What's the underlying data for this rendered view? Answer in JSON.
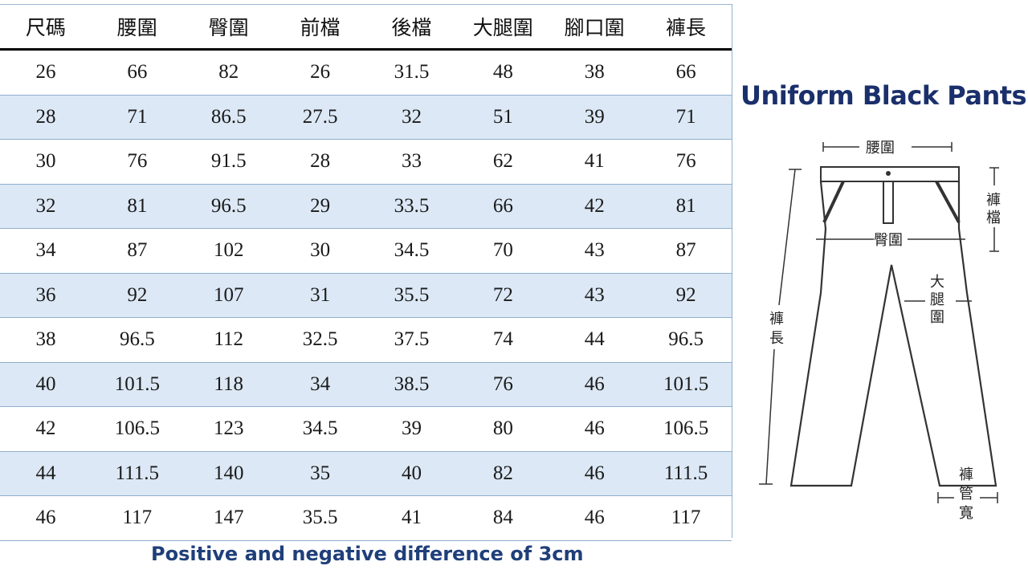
{
  "size_table": {
    "headers": [
      "尺碼",
      "腰圍",
      "臀圍",
      "前檔",
      "後檔",
      "大腿圍",
      "腳口圍",
      "褲長"
    ],
    "rows": [
      [
        "26",
        "66",
        "82",
        "26",
        "31.5",
        "48",
        "38",
        "66"
      ],
      [
        "28",
        "71",
        "86.5",
        "27.5",
        "32",
        "51",
        "39",
        "71"
      ],
      [
        "30",
        "76",
        "91.5",
        "28",
        "33",
        "62",
        "41",
        "76"
      ],
      [
        "32",
        "81",
        "96.5",
        "29",
        "33.5",
        "66",
        "42",
        "81"
      ],
      [
        "34",
        "87",
        "102",
        "30",
        "34.5",
        "70",
        "43",
        "87"
      ],
      [
        "36",
        "92",
        "107",
        "31",
        "35.5",
        "72",
        "43",
        "92"
      ],
      [
        "38",
        "96.5",
        "112",
        "32.5",
        "37.5",
        "74",
        "44",
        "96.5"
      ],
      [
        "40",
        "101.5",
        "118",
        "34",
        "38.5",
        "76",
        "46",
        "101.5"
      ],
      [
        "42",
        "106.5",
        "123",
        "34.5",
        "39",
        "80",
        "46",
        "106.5"
      ],
      [
        "44",
        "111.5",
        "140",
        "35",
        "40",
        "82",
        "46",
        "111.5"
      ],
      [
        "46",
        "117",
        "147",
        "35.5",
        "41",
        "84",
        "46",
        "117"
      ]
    ]
  },
  "footer_note": "Positive and negative difference of 3cm",
  "product_title": "Uniform Black Pants",
  "diagram_labels": {
    "waist": "腰圍",
    "rise_l1": "褲",
    "rise_l2": "檔",
    "hip": "臀圍",
    "thigh_l1": "大",
    "thigh_l2": "腿",
    "thigh_l3": "圍",
    "length_l1": "褲",
    "length_l2": "長",
    "hem_l1": "褲",
    "hem_l2": "管",
    "hem_l3": "寬"
  },
  "colors": {
    "stripe": "#dce8f5",
    "grid": "#8fb0cd",
    "title": "#1a2f6b"
  }
}
